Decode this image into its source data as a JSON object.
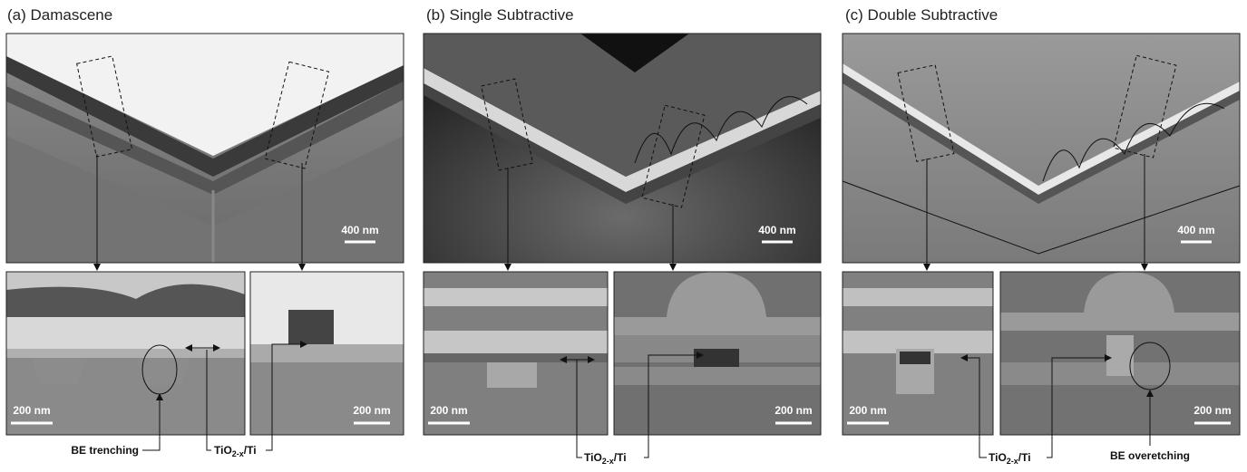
{
  "panels": [
    {
      "title": "(a) Damascene",
      "overview_scale": "400 nm",
      "details": [
        {
          "scale": "200 nm"
        },
        {
          "scale": "200 nm"
        }
      ]
    },
    {
      "title": "(b) Single Subtractive",
      "overview_scale": "400 nm",
      "details": [
        {
          "scale": "200 nm"
        },
        {
          "scale": "200 nm"
        }
      ]
    },
    {
      "title": "(c) Double Subtractive",
      "overview_scale": "400 nm",
      "details": [
        {
          "scale": "200 nm"
        },
        {
          "scale": "200 nm"
        }
      ]
    }
  ],
  "labels": {
    "be_trenching": "BE trenching",
    "tio_a": {
      "base": "TiO",
      "sub": "2-x",
      "rest": "/Ti"
    },
    "tio_b": {
      "base": "TiO",
      "sub": "2-x",
      "rest": "/Ti"
    },
    "tio_c": {
      "base": "TiO",
      "sub": "2-x",
      "rest": "/Ti"
    },
    "be_overetching": "BE overetching"
  }
}
